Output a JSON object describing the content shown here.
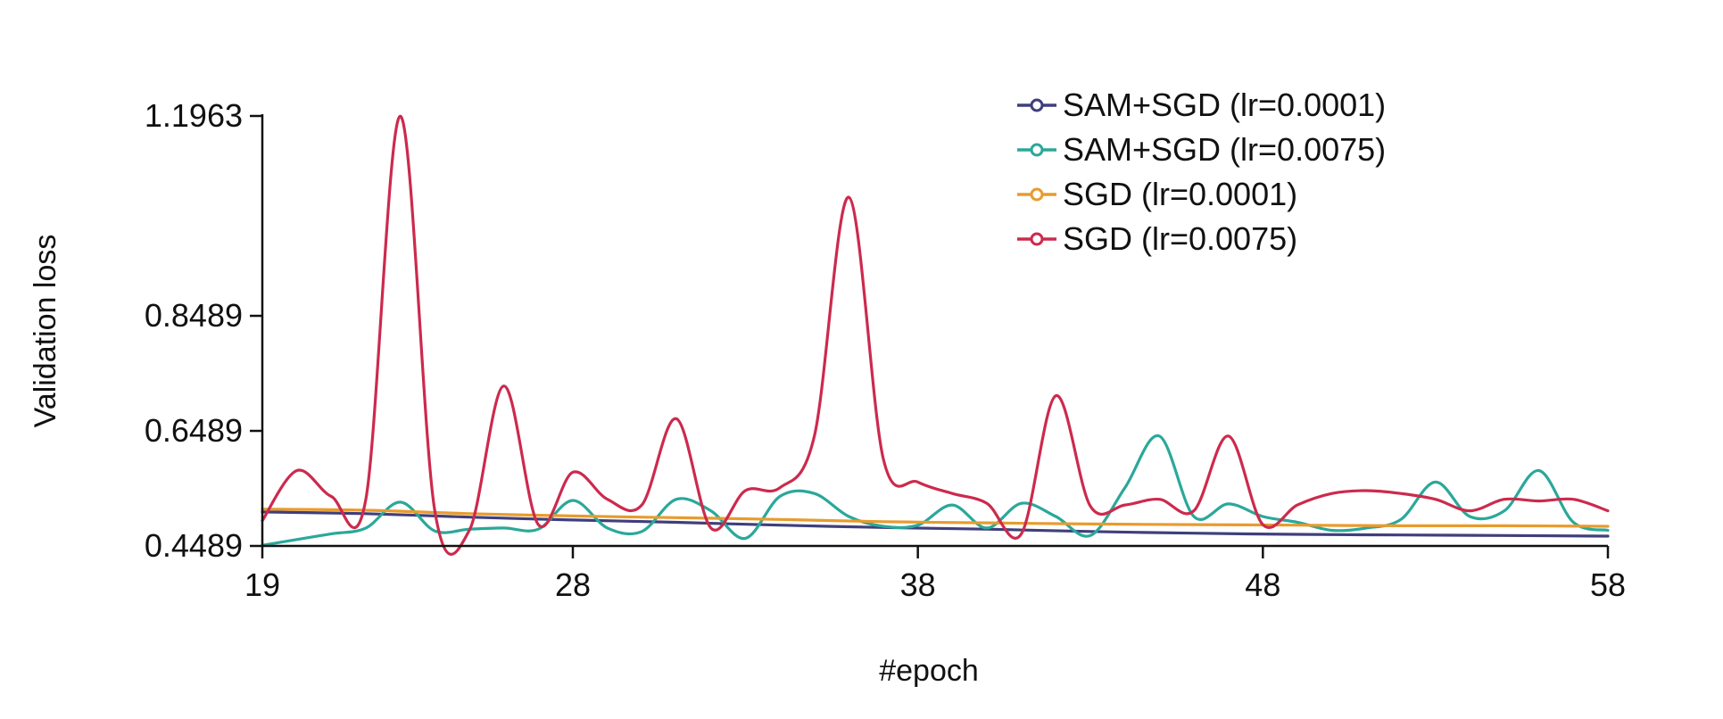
{
  "chart_data": {
    "type": "line",
    "xlabel": "#epoch",
    "ylabel": "Validation loss",
    "xlim": [
      19,
      58
    ],
    "ylim": [
      0.4489,
      1.1963
    ],
    "x_ticks": [
      19,
      28,
      38,
      48,
      58
    ],
    "y_ticks": [
      0.4489,
      0.6489,
      0.8489,
      1.1963
    ],
    "y_tick_labels": [
      "0.4489",
      "0.6489",
      "0.8489",
      "1.1963"
    ],
    "legend_position": "top-right",
    "grid": false,
    "series": [
      {
        "name": "SAM+SGD (lr=0.0001)",
        "color": "#3f3f7c",
        "x": [
          19,
          22,
          25,
          28,
          31,
          34,
          37,
          40,
          43,
          46,
          49,
          52,
          55,
          58
        ],
        "y": [
          0.508,
          0.505,
          0.499,
          0.494,
          0.49,
          0.485,
          0.481,
          0.478,
          0.474,
          0.471,
          0.469,
          0.468,
          0.467,
          0.466
        ]
      },
      {
        "name": "SAM+SGD (lr=0.0075)",
        "color": "#2aa89a",
        "x": [
          19,
          20,
          21,
          22,
          23,
          24,
          25,
          26,
          27,
          28,
          29,
          30,
          31,
          32,
          33,
          34,
          35,
          36,
          37,
          38,
          39,
          40,
          41,
          42,
          43,
          44,
          45,
          46,
          47,
          48,
          49,
          50,
          51,
          52,
          53,
          54,
          55,
          56,
          57,
          58
        ],
        "y": [
          0.45,
          0.46,
          0.47,
          0.48,
          0.525,
          0.475,
          0.478,
          0.48,
          0.478,
          0.528,
          0.48,
          0.474,
          0.53,
          0.51,
          0.462,
          0.535,
          0.54,
          0.5,
          0.483,
          0.485,
          0.52,
          0.48,
          0.523,
          0.5,
          0.467,
          0.55,
          0.64,
          0.5,
          0.522,
          0.5,
          0.49,
          0.476,
          0.48,
          0.495,
          0.56,
          0.5,
          0.51,
          0.58,
          0.49,
          0.476
        ]
      },
      {
        "name": "SGD (lr=0.0001)",
        "color": "#e89b2e",
        "x": [
          19,
          22,
          25,
          28,
          31,
          34,
          37,
          40,
          43,
          46,
          49,
          52,
          55,
          58
        ],
        "y": [
          0.513,
          0.511,
          0.505,
          0.501,
          0.498,
          0.495,
          0.491,
          0.489,
          0.487,
          0.486,
          0.485,
          0.484,
          0.484,
          0.483
        ]
      },
      {
        "name": "SGD (lr=0.0075)",
        "color": "#cc2a4d",
        "x": [
          19,
          20,
          21,
          22,
          23,
          24,
          25,
          26,
          27,
          28,
          29,
          30,
          31,
          32,
          33,
          34,
          35,
          36,
          37,
          38,
          39,
          40,
          41,
          42,
          43,
          44,
          45,
          46,
          47,
          48,
          49,
          50,
          51,
          52,
          53,
          54,
          55,
          56,
          57,
          58
        ],
        "y": [
          0.493,
          0.58,
          0.535,
          0.53,
          1.196,
          0.51,
          0.476,
          0.727,
          0.486,
          0.577,
          0.53,
          0.52,
          0.67,
          0.48,
          0.545,
          0.55,
          0.64,
          1.055,
          0.6,
          0.56,
          0.54,
          0.523,
          0.47,
          0.71,
          0.518,
          0.52,
          0.53,
          0.51,
          0.64,
          0.486,
          0.52,
          0.54,
          0.545,
          0.54,
          0.53,
          0.51,
          0.53,
          0.527,
          0.53,
          0.51
        ]
      }
    ]
  }
}
